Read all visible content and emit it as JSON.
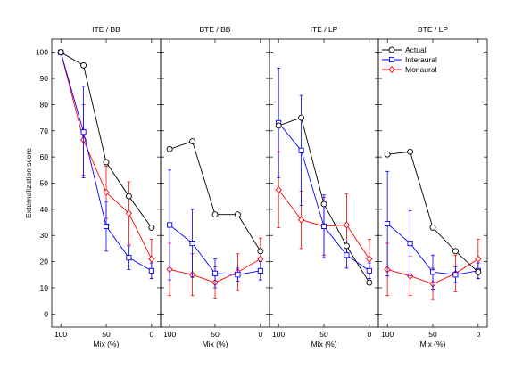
{
  "chart_data": {
    "type": "line",
    "ylabel": "Externalization score",
    "ylim": [
      -5,
      105
    ],
    "yticks": [
      0,
      10,
      20,
      30,
      40,
      50,
      60,
      70,
      80,
      90,
      100
    ],
    "xlim": [
      110,
      -10
    ],
    "xticks": [
      100,
      50,
      0
    ],
    "legend_position": "top-right (last panel)",
    "colors": {
      "Actual": "#000000",
      "Interaural": "#0000ff",
      "Monaural": "#ff0000"
    },
    "markers": {
      "Actual": "circle",
      "Interaural": "square",
      "Monaural": "diamond"
    },
    "panels": [
      {
        "title": "ITE / BB",
        "xlabel": "Mix (%)",
        "series": [
          {
            "name": "Actual",
            "x": [
              100,
              75,
              50,
              25,
              0
            ],
            "y": [
              100,
              95,
              58,
              45,
              33
            ],
            "err": [
              0,
              0,
              0,
              0,
              0
            ]
          },
          {
            "name": "Interaural",
            "x": [
              100,
              75,
              50,
              25,
              0
            ],
            "y": [
              100,
              69.5,
              33.5,
              21.5,
              16.5
            ],
            "err": [
              0,
              17.5,
              9.5,
              4.5,
              3
            ]
          },
          {
            "name": "Monaural",
            "x": [
              100,
              75,
              50,
              25,
              0
            ],
            "y": [
              100,
              66.5,
              46.5,
              38.5,
              21
            ],
            "err": [
              0,
              13.5,
              10,
              12,
              7.5
            ]
          }
        ]
      },
      {
        "title": "BTE / BB",
        "xlabel": "Mix (%)",
        "series": [
          {
            "name": "Actual",
            "x": [
              100,
              75,
              50,
              25,
              0
            ],
            "y": [
              63,
              66,
              38,
              38,
              24
            ],
            "err": [
              0,
              0,
              0,
              0,
              0
            ]
          },
          {
            "name": "Interaural",
            "x": [
              100,
              75,
              50,
              25,
              0
            ],
            "y": [
              34,
              27,
              15.5,
              15,
              16.5
            ],
            "err": [
              21,
              13,
              5.5,
              2.5,
              3.5
            ]
          },
          {
            "name": "Monaural",
            "x": [
              100,
              75,
              50,
              25,
              0
            ],
            "y": [
              17,
              15,
              12,
              16,
              21
            ],
            "err": [
              10,
              8,
              6,
              7,
              8
            ]
          }
        ]
      },
      {
        "title": "ITE / LP",
        "xlabel": "Mix (%)",
        "series": [
          {
            "name": "Actual",
            "x": [
              100,
              75,
              50,
              25,
              0
            ],
            "y": [
              72,
              75,
              42,
              26,
              12
            ],
            "err": [
              0,
              0,
              0,
              0,
              0
            ]
          },
          {
            "name": "Interaural",
            "x": [
              100,
              75,
              50,
              25,
              0
            ],
            "y": [
              73,
              62.5,
              33.5,
              22.5,
              16.5
            ],
            "err": [
              21,
              21,
              12,
              5,
              3
            ]
          },
          {
            "name": "Monaural",
            "x": [
              100,
              75,
              50,
              25,
              0
            ],
            "y": [
              47.5,
              36,
              33.5,
              34,
              21
            ],
            "err": [
              14.5,
              11,
              11,
              12,
              7.5
            ]
          }
        ]
      },
      {
        "title": "BTE / LP",
        "xlabel": "Mix (%)",
        "series": [
          {
            "name": "Actual",
            "x": [
              100,
              75,
              50,
              25,
              0
            ],
            "y": [
              61,
              62,
              33,
              24,
              16
            ],
            "err": [
              0,
              0,
              0,
              0,
              0
            ]
          },
          {
            "name": "Interaural",
            "x": [
              100,
              75,
              50,
              25,
              0
            ],
            "y": [
              34.5,
              27,
              16,
              15,
              16.5
            ],
            "err": [
              20,
              12.5,
              6.5,
              3,
              3
            ]
          },
          {
            "name": "Monaural",
            "x": [
              100,
              75,
              50,
              25,
              0
            ],
            "y": [
              17,
              14.5,
              11.5,
              15.5,
              21
            ],
            "err": [
              10,
              7.5,
              6,
              7,
              7.5
            ]
          }
        ]
      }
    ]
  }
}
